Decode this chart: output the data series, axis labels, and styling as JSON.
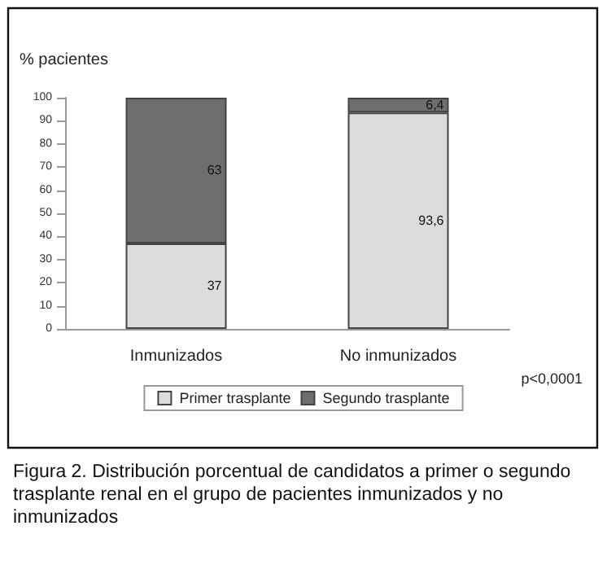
{
  "chart_data": {
    "type": "bar",
    "stacked": true,
    "ylabel": "% pacientes",
    "categories": [
      "Inmunizados",
      "No inmunizados"
    ],
    "series": [
      {
        "name": "Primer trasplante",
        "color": "#dcdcdc",
        "values": [
          37,
          93.6
        ],
        "value_labels": [
          "37",
          "93,6"
        ]
      },
      {
        "name": "Segundo trasplante",
        "color": "#6e6e6e",
        "values": [
          63,
          6.4
        ],
        "value_labels": [
          "63",
          "6,4"
        ]
      }
    ],
    "ylim": [
      0,
      100
    ],
    "yticks": [
      0,
      10,
      20,
      30,
      40,
      50,
      60,
      70,
      80,
      90,
      100
    ],
    "grid": false,
    "legend": "bottom",
    "annotations": [
      "p<0,0001",
      "Figura 2. Distribución porcentual de candidatos a primer o segundo trasplante renal en el grupo de pacientes inmunizados y no inmunizados"
    ]
  }
}
